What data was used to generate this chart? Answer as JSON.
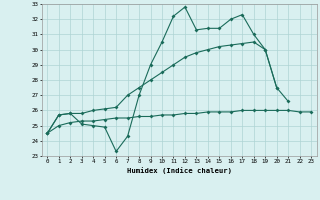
{
  "xlabel": "Humidex (Indice chaleur)",
  "x": [
    0,
    1,
    2,
    3,
    4,
    5,
    6,
    7,
    8,
    9,
    10,
    11,
    12,
    13,
    14,
    15,
    16,
    17,
    18,
    19,
    20,
    21,
    22,
    23
  ],
  "line1": [
    24.5,
    25.7,
    25.8,
    25.1,
    25.0,
    24.9,
    23.3,
    24.3,
    27.0,
    29.0,
    30.5,
    32.2,
    32.8,
    31.3,
    31.4,
    31.4,
    32.0,
    32.3,
    31.0,
    30.0,
    27.5,
    26.6,
    null,
    null
  ],
  "line2": [
    24.5,
    25.7,
    25.8,
    25.8,
    26.0,
    26.1,
    26.2,
    27.0,
    27.5,
    28.0,
    28.5,
    29.0,
    29.5,
    29.8,
    30.0,
    30.2,
    30.3,
    30.4,
    30.5,
    30.0,
    27.5,
    null,
    null,
    null
  ],
  "line3": [
    24.5,
    25.0,
    25.2,
    25.3,
    25.3,
    25.4,
    25.5,
    25.5,
    25.6,
    25.6,
    25.7,
    25.7,
    25.8,
    25.8,
    25.9,
    25.9,
    25.9,
    26.0,
    26.0,
    26.0,
    26.0,
    26.0,
    25.9,
    25.9
  ],
  "ylim": [
    23,
    33
  ],
  "xlim": [
    -0.5,
    23.5
  ],
  "yticks": [
    23,
    24,
    25,
    26,
    27,
    28,
    29,
    30,
    31,
    32,
    33
  ],
  "xticks": [
    0,
    1,
    2,
    3,
    4,
    5,
    6,
    7,
    8,
    9,
    10,
    11,
    12,
    13,
    14,
    15,
    16,
    17,
    18,
    19,
    20,
    21,
    22,
    23
  ],
  "line_color": "#1a6b5a",
  "bg_color": "#d9f0f0",
  "grid_color": "#aed4d4"
}
